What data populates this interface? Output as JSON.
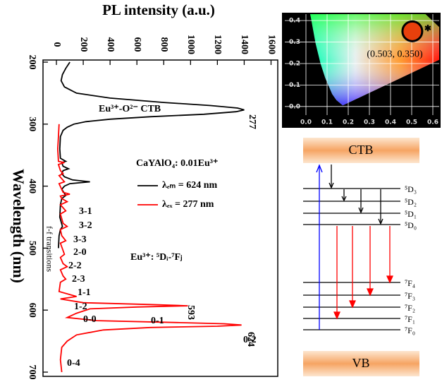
{
  "chart_data": [
    {
      "type": "line",
      "x_label": "Wavelength (nm)",
      "y_label": "PL intensity (a.u.)",
      "xlim": [
        200,
        700
      ],
      "xticks": [
        200,
        300,
        400,
        500,
        600,
        700
      ],
      "ylim": [
        -100,
        1650
      ],
      "yticks": [
        0,
        200,
        400,
        600,
        800,
        1000,
        1200,
        1400,
        1600
      ],
      "series": [
        {
          "name": "λₑₘ = 624 nm",
          "color": "#000000",
          "x": [
            200,
            210,
            220,
            230,
            240,
            250,
            258,
            265,
            270,
            274,
            277,
            280,
            284,
            288,
            292,
            296,
            300,
            305,
            310,
            320,
            340,
            355,
            360,
            362,
            368,
            372,
            375,
            380,
            385,
            390,
            393,
            396,
            400,
            405,
            415,
            420,
            430,
            450,
            465,
            470,
            480,
            500
          ],
          "values": [
            100,
            70,
            45,
            35,
            60,
            150,
            400,
            800,
            1150,
            1350,
            1400,
            1340,
            1100,
            700,
            400,
            220,
            130,
            80,
            50,
            30,
            25,
            30,
            70,
            40,
            50,
            90,
            50,
            40,
            60,
            120,
            250,
            100,
            60,
            40,
            70,
            40,
            30,
            25,
            45,
            30,
            20,
            15
          ]
        },
        {
          "name": "λₑₓ = 277 nm",
          "color": "#ff0000",
          "x": [
            300,
            320,
            340,
            360,
            362,
            365,
            375,
            380,
            383,
            393,
            396,
            410,
            413,
            416,
            420,
            425,
            430,
            440,
            445,
            460,
            465,
            470,
            480,
            488,
            492,
            510,
            515,
            525,
            530,
            535,
            545,
            550,
            555,
            570,
            578,
            582,
            588,
            591,
            593,
            595,
            598,
            605,
            612,
            617,
            620,
            622,
            624,
            626,
            628,
            632,
            640,
            650,
            660,
            680,
            700
          ],
          "values": [
            20,
            15,
            10,
            15,
            60,
            15,
            30,
            50,
            20,
            60,
            20,
            50,
            100,
            30,
            40,
            80,
            30,
            70,
            30,
            50,
            80,
            30,
            40,
            70,
            30,
            60,
            30,
            50,
            80,
            30,
            50,
            70,
            30,
            20,
            150,
            30,
            200,
            700,
            980,
            600,
            250,
            150,
            80,
            300,
            900,
            1250,
            1380,
            1200,
            700,
            350,
            150,
            80,
            40,
            30,
            40
          ]
        }
      ],
      "annotations": [
        "Eu³⁺-O²⁻ CTB",
        "277",
        "CaYAlO₄: 0.01Eu³⁺",
        "f-f transitions",
        "3-1",
        "3-2",
        "3-3",
        "2-0",
        "2-2",
        "2-3",
        "1-1",
        "1-2",
        "0-0",
        "0-1",
        "593",
        "624",
        "0-2",
        "0-4",
        "Eu³⁺: ⁵Dᵢ-⁷Fⱼ"
      ]
    },
    {
      "type": "scatter",
      "xlim": [
        -0.1,
        0.63
      ],
      "ylim": [
        -0.04,
        0.43
      ],
      "xticks": [
        {
          "value": 0,
          "label": "0.0"
        },
        {
          "value": 0.1,
          "label": "0.1"
        },
        {
          "value": 0.2,
          "label": "0.2"
        },
        {
          "value": 0.3,
          "label": "0.3"
        },
        {
          "value": 0.4,
          "label": "0.4"
        },
        {
          "value": 0.5,
          "label": "0.5"
        },
        {
          "value": 0.6,
          "label": "0.6"
        }
      ],
      "yticks": [
        {
          "value": 0,
          "label": "0.0"
        },
        {
          "value": 0.1,
          "label": "0.1"
        },
        {
          "value": 0.2,
          "label": "0.2"
        },
        {
          "value": 0.3,
          "label": "0.3"
        },
        {
          "value": 0.4,
          "label": "0.4"
        }
      ],
      "grid": true,
      "color": "#e8400c",
      "x": [
        0.503
      ],
      "values": [
        0.35
      ],
      "value_labels": [
        "(0.503, 0.350)"
      ]
    }
  ],
  "energy_diagram": {
    "top_band": "CTB",
    "bottom_band": "VB",
    "levels": [
      "⁵D₃",
      "⁵D₂",
      "⁵D₁",
      "⁵D₀",
      "⁷F₄",
      "⁷F₃",
      "⁷F₂",
      "⁷F₁",
      "⁷F₀"
    ]
  }
}
